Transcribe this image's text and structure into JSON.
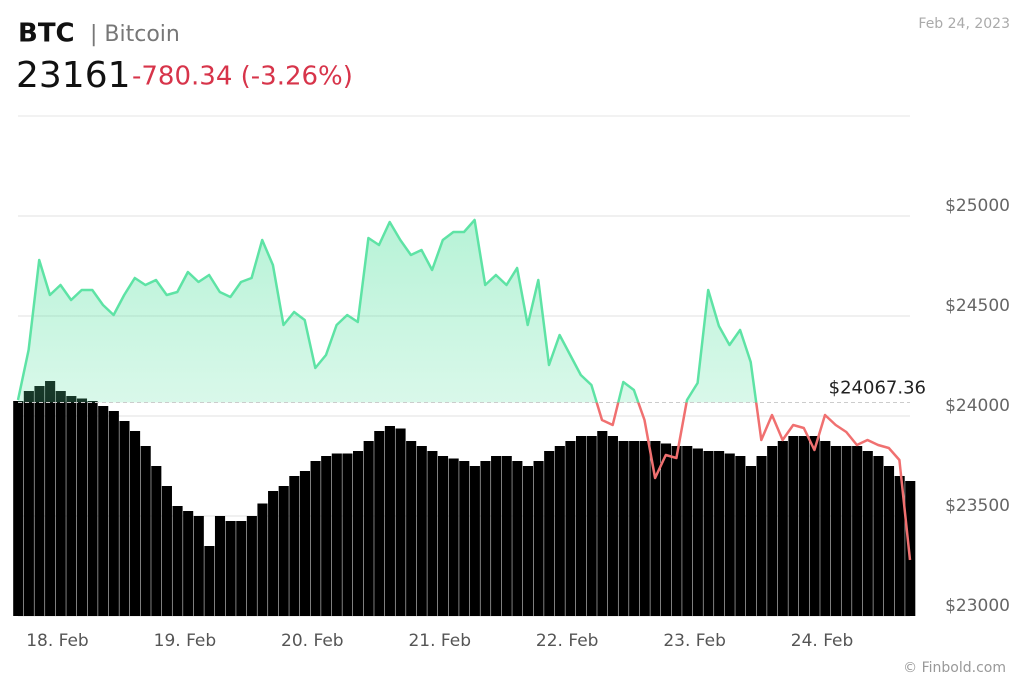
{
  "chart_data": {
    "type": "line",
    "title": "BTC",
    "subtitle": "| Bitcoin",
    "last_price": 23161,
    "change": {
      "value": -780.34,
      "label": "-780.34 (-3.26%)"
    },
    "date": "Feb 24, 2023",
    "source": "© Finbold.com",
    "reference": {
      "value": 24067.36,
      "label": "$24067.36"
    },
    "up_color": "#5ee3a5",
    "down_color": "#f07070",
    "volume_color": "#000000",
    "ylim": [
      23000,
      25500
    ],
    "yticks": [
      {
        "value": 23000,
        "label": "$23000"
      },
      {
        "value": 23500,
        "label": "$23500"
      },
      {
        "value": 24000,
        "label": "$24000"
      },
      {
        "value": 24500,
        "label": "$24500"
      },
      {
        "value": 25000,
        "label": "$25000"
      }
    ],
    "grid": true,
    "categories": [
      null,
      null,
      null,
      null,
      "18. Feb",
      null,
      null,
      null,
      null,
      null,
      null,
      null,
      null,
      null,
      null,
      null,
      "19. Feb",
      null,
      null,
      null,
      null,
      null,
      null,
      null,
      null,
      null,
      null,
      null,
      "20. Feb",
      null,
      null,
      null,
      null,
      null,
      null,
      null,
      null,
      null,
      null,
      null,
      "21. Feb",
      null,
      null,
      null,
      null,
      null,
      null,
      null,
      null,
      null,
      null,
      null,
      "22. Feb",
      null,
      null,
      null,
      null,
      null,
      null,
      null,
      null,
      null,
      null,
      null,
      "23. Feb",
      null,
      null,
      null,
      null,
      null,
      null,
      null,
      null,
      null,
      null,
      null,
      "24. Feb",
      null,
      null,
      null,
      null,
      null,
      null,
      null,
      null
    ],
    "values": [
      24080,
      24330,
      24780,
      24605,
      24655,
      24580,
      24630,
      24630,
      24555,
      24505,
      24605,
      24690,
      24655,
      24680,
      24605,
      24620,
      24720,
      24670,
      24705,
      24620,
      24595,
      24670,
      24690,
      24880,
      24755,
      24455,
      24520,
      24480,
      24240,
      24305,
      24455,
      24505,
      24470,
      24890,
      24855,
      24970,
      24880,
      24805,
      24830,
      24730,
      24880,
      24920,
      24920,
      24980,
      24655,
      24705,
      24655,
      24740,
      24455,
      24680,
      24255,
      24405,
      24305,
      24205,
      24155,
      23980,
      23955,
      24170,
      24130,
      23980,
      23690,
      23805,
      23790,
      24080,
      24165,
      24630,
      24450,
      24355,
      24430,
      24270,
      23880,
      24005,
      23880,
      23955,
      23940,
      23830,
      24005,
      23955,
      23920,
      23855,
      23880,
      23855,
      23840,
      23780,
      23280
    ],
    "volume": [
      86,
      90,
      92,
      94,
      90,
      88,
      87,
      86,
      84,
      82,
      78,
      74,
      68,
      60,
      52,
      44,
      42,
      40,
      28,
      40,
      38,
      38,
      40,
      45,
      50,
      52,
      56,
      58,
      62,
      64,
      65,
      65,
      66,
      70,
      74,
      76,
      75,
      70,
      68,
      66,
      64,
      63,
      62,
      60,
      62,
      64,
      64,
      62,
      60,
      62,
      66,
      68,
      70,
      72,
      72,
      74,
      72,
      70,
      70,
      70,
      70,
      69,
      68,
      68,
      67,
      66,
      66,
      65,
      64,
      60,
      64,
      68,
      70,
      72,
      72,
      72,
      70,
      68,
      68,
      68,
      66,
      64,
      60,
      56,
      54
    ]
  }
}
